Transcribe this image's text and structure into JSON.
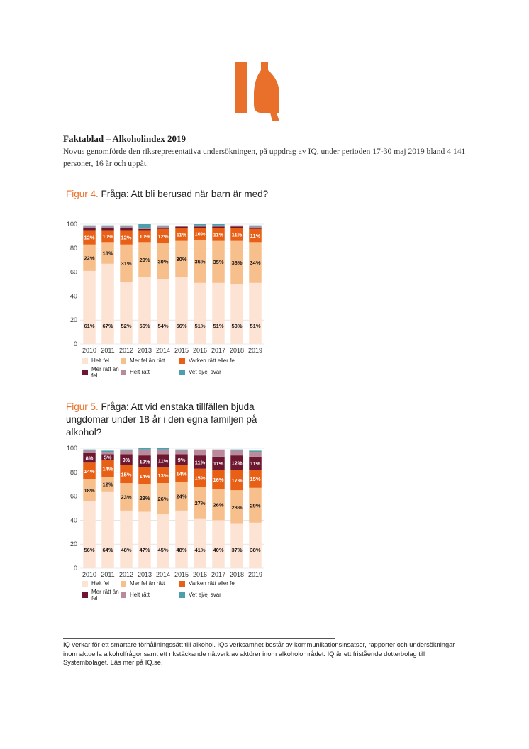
{
  "logo": {
    "text": "IQ",
    "color": "#e8702a"
  },
  "doc": {
    "title": "Faktablad – Alkoholindex 2019",
    "intro": "Novus genomförde den riksrepresentativa undersökningen, på uppdrag av IQ, under perioden 17-30 maj 2019 bland 4 141 personer, 16 år och uppåt."
  },
  "figures": [
    {
      "number": "Figur 4.",
      "question": "Fråga: Att bli berusad när barn är med?"
    },
    {
      "number": "Figur 5.",
      "question": "Fråga: Att vid enstaka tillfällen bjuda ungdomar under 18 år i den egna familjen på alkohol?"
    }
  ],
  "legend": {
    "entries": [
      "Helt fel",
      "Mer fel än rätt",
      "Varken rätt eller fel",
      "Mer rätt än fel",
      "Helt rätt",
      "Vet ej/ej svar"
    ],
    "colors": [
      "#fde3d3",
      "#f7bf8c",
      "#e85f16",
      "#6e1730",
      "#b88a9b",
      "#4d9fab"
    ]
  },
  "chart_data": [
    {
      "type": "bar",
      "stacked": true,
      "title": "Figur 4. Fråga: Att bli berusad när barn är med?",
      "categories": [
        "2010",
        "2011",
        "2012",
        "2013",
        "2014",
        "2015",
        "2016",
        "2017",
        "2018",
        "2019"
      ],
      "yticks": [
        "0",
        "20",
        "40",
        "60",
        "80",
        "100"
      ],
      "ylim": [
        0,
        100
      ],
      "series": [
        {
          "name": "Helt fel",
          "values": [
            61,
            67,
            52,
            56,
            54,
            56,
            51,
            51,
            50,
            51
          ],
          "labels": [
            "61%",
            "67%",
            "52%",
            "56%",
            "54%",
            "56%",
            "51%",
            "51%",
            "50%",
            "51%"
          ]
        },
        {
          "name": "Mer fel än rätt",
          "values": [
            22,
            18,
            31,
            29,
            30,
            30,
            36,
            35,
            36,
            34
          ],
          "labels": [
            "22%",
            "18%",
            "31%",
            "29%",
            "30%",
            "30%",
            "36%",
            "35%",
            "36%",
            "34%"
          ]
        },
        {
          "name": "Varken rätt eller fel",
          "values": [
            12,
            10,
            12,
            10,
            12,
            11,
            10,
            11,
            11,
            11
          ],
          "labels": [
            "12%",
            "10%",
            "12%",
            "10%",
            "12%",
            "11%",
            "10%",
            "11%",
            "11%",
            "11%"
          ]
        },
        {
          "name": "Mer rätt än fel",
          "values": [
            2,
            2,
            2,
            1,
            1,
            1,
            1,
            1,
            1,
            1
          ],
          "labels": [
            "",
            "",
            "",
            "",
            "",
            "",
            "",
            "",
            "",
            ""
          ]
        },
        {
          "name": "Helt rätt",
          "values": [
            1,
            1,
            1,
            1,
            1,
            0,
            1,
            1,
            1,
            1
          ],
          "labels": [
            "",
            "",
            "",
            "",
            "",
            "",
            "",
            "",
            "",
            ""
          ]
        },
        {
          "name": "Vet ej/ej svar",
          "values": [
            1,
            1,
            1,
            3,
            1,
            0,
            1,
            1,
            0,
            1
          ],
          "labels": [
            "",
            "",
            "",
            "",
            "",
            "",
            "",
            "",
            "",
            ""
          ]
        }
      ]
    },
    {
      "type": "bar",
      "stacked": true,
      "title": "Figur 5. Fråga: Att vid enstaka tillfällen bjuda ungdomar under 18 år i den egna familjen på alkohol?",
      "categories": [
        "2010",
        "2011",
        "2012",
        "2013",
        "2014",
        "2015",
        "2016",
        "2017",
        "2018",
        "2019"
      ],
      "yticks": [
        "0",
        "20",
        "40",
        "60",
        "80",
        "100"
      ],
      "ylim": [
        0,
        100
      ],
      "series": [
        {
          "name": "Helt fel",
          "values": [
            56,
            64,
            48,
            47,
            45,
            48,
            41,
            40,
            37,
            38
          ],
          "labels": [
            "56%",
            "64%",
            "48%",
            "47%",
            "45%",
            "48%",
            "41%",
            "40%",
            "37%",
            "38%"
          ]
        },
        {
          "name": "Mer fel än rätt",
          "values": [
            18,
            12,
            23,
            23,
            26,
            24,
            27,
            26,
            28,
            29
          ],
          "labels": [
            "18%",
            "12%",
            "23%",
            "23%",
            "26%",
            "24%",
            "27%",
            "26%",
            "28%",
            "29%"
          ]
        },
        {
          "name": "Varken rätt eller fel",
          "values": [
            14,
            14,
            15,
            14,
            13,
            14,
            15,
            16,
            17,
            15
          ],
          "labels": [
            "14%",
            "14%",
            "15%",
            "14%",
            "13%",
            "14%",
            "15%",
            "16%",
            "17%",
            "15%"
          ]
        },
        {
          "name": "Mer rätt än fel",
          "values": [
            8,
            5,
            9,
            10,
            11,
            9,
            11,
            11,
            12,
            11
          ],
          "labels": [
            "8%",
            "5%",
            "9%",
            "10%",
            "11%",
            "9%",
            "11%",
            "11%",
            "12%",
            "11%"
          ]
        },
        {
          "name": "Helt rätt",
          "values": [
            2,
            2,
            3,
            5,
            4,
            3,
            5,
            6,
            4,
            4
          ],
          "labels": [
            "",
            "",
            "",
            "",
            "",
            "",
            "",
            "",
            "",
            ""
          ]
        },
        {
          "name": "Vet ej/ej svar",
          "values": [
            1,
            1,
            1,
            1,
            1,
            1,
            0,
            0,
            1,
            1
          ],
          "labels": [
            "",
            "",
            "",
            "",
            "",
            "",
            "",
            "",
            "",
            ""
          ]
        }
      ]
    }
  ],
  "footer": {
    "text": "IQ verkar för ett smartare förhållningssätt till alkohol. IQs verksamhet består av kommunikationsinsatser, rapporter och undersökningar inom aktuella alkoholfrågor samt ett rikstäckande nätverk av aktörer inom alkoholområdet. IQ är ett fristående dotterbolag till Systembolaget. Läs mer på IQ.se."
  }
}
